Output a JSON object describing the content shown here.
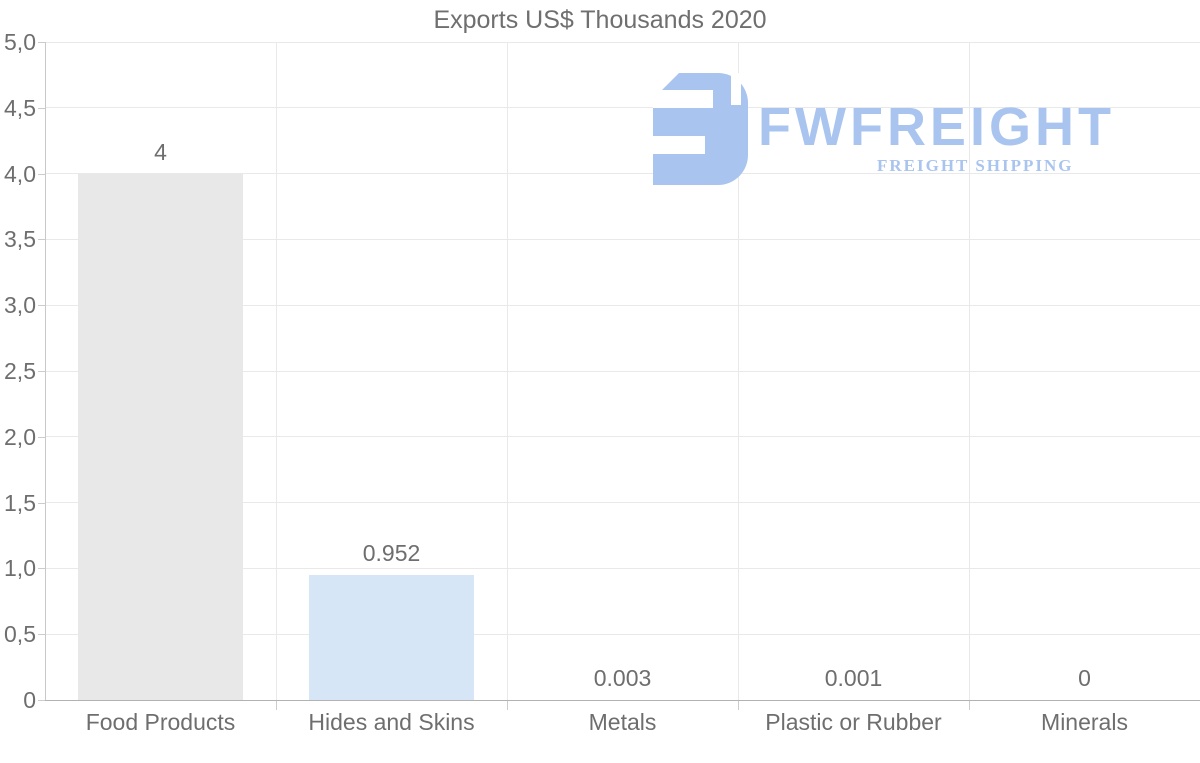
{
  "title": "Exports US$ Thousands 2020",
  "watermark": {
    "brand": "FWFREIGHT",
    "tagline": "FREIGHT SHIPPING",
    "color": "#a9c4ee"
  },
  "chart_data": {
    "type": "bar",
    "title": "Exports US$ Thousands 2020",
    "categories": [
      "Food Products",
      "Hides and Skins",
      "Metals",
      "Plastic or Rubber",
      "Minerals"
    ],
    "values": [
      4,
      0.952,
      0.003,
      0.001,
      0
    ],
    "value_labels": [
      "4",
      "0.952",
      "0.003",
      "0.001",
      "0"
    ],
    "bar_colors": [
      "#e8e8e8",
      "#d7e6f7",
      "#d7e6f7",
      "#d7e6f7",
      "#d7e6f7"
    ],
    "xlabel": "",
    "ylabel": "",
    "ylim": [
      0,
      5
    ],
    "ytick_step": 0.5,
    "ytick_labels": [
      "0",
      "0,5",
      "1,0",
      "1,5",
      "2,0",
      "2,5",
      "3,0",
      "3,5",
      "4,0",
      "4,5",
      "5,0"
    ],
    "grid": true,
    "legend_position": "none",
    "text_color": "#6e6e6e",
    "grid_color": "#e9e9e9",
    "axis_color": "#b2b2b2",
    "tick_color": "#cccccc"
  }
}
